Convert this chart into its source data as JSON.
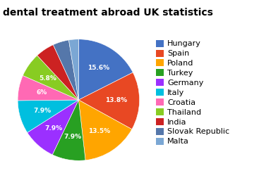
{
  "title": "dental treatment abroad UK statistics",
  "labels": [
    "Hungary",
    "Spain",
    "Poland",
    "Turkey",
    "Germany",
    "Italy",
    "Croatia",
    "Thailand",
    "India",
    "Slovak Republic",
    "Malta"
  ],
  "values": [
    15.6,
    13.8,
    13.5,
    7.9,
    7.9,
    7.9,
    6.0,
    5.8,
    4.5,
    3.8,
    2.3
  ],
  "colors": [
    "#4472C4",
    "#E84823",
    "#FFA500",
    "#28A022",
    "#9B30FF",
    "#00BFDF",
    "#FF69B4",
    "#88CC22",
    "#CC2222",
    "#5577AA",
    "#7BA7D4"
  ],
  "text_labels": [
    "15.6%",
    "13.8%",
    "13.5%",
    "7.9%",
    "",
    "",
    "",
    "5.8%",
    "",
    "",
    ""
  ],
  "label_indices": [
    0,
    1,
    2,
    3,
    7
  ],
  "title_fontsize": 10,
  "legend_fontsize": 8
}
